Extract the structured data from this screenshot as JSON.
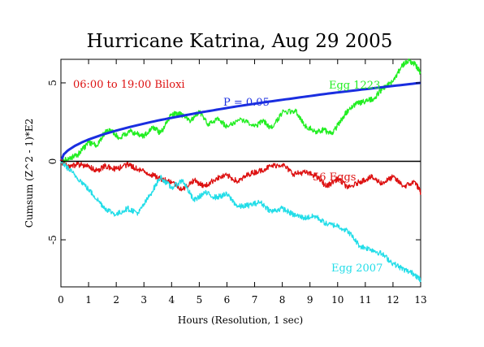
{
  "chart_data": {
    "type": "line",
    "title": "Hurricane Katrina, Aug 29 2005",
    "xlabel": "Hours (Resolution, 1 sec)",
    "ylabel": "Cumsum (Z^2 - 1)*E2",
    "xlim": [
      0,
      13
    ],
    "ylim": [
      -8,
      6.5
    ],
    "x_ticks": [
      0,
      1,
      2,
      3,
      4,
      5,
      6,
      7,
      8,
      9,
      10,
      11,
      12,
      13
    ],
    "y_ticks": [
      {
        "value": 5,
        "label": "5"
      },
      {
        "value": 0,
        "label": "0"
      },
      {
        "value": -5,
        "label": "-5"
      }
    ],
    "annotations": {
      "period": "06:00 to 19:00 Biloxi",
      "significance": "P = 0.05"
    },
    "grid": false,
    "series": [
      {
        "name": "Egg 1223",
        "color": "#22ee22",
        "x": [
          0,
          0.3,
          0.6,
          1.0,
          1.3,
          1.6,
          1.8,
          2.1,
          2.5,
          3.0,
          3.3,
          3.6,
          4.0,
          4.3,
          4.7,
          5.0,
          5.3,
          5.7,
          6.0,
          6.5,
          7.0,
          7.3,
          7.6,
          8.0,
          8.5,
          8.8,
          9.2,
          9.5,
          9.8,
          10.1,
          10.4,
          10.7,
          11.0,
          11.3,
          11.6,
          12.0,
          12.3,
          12.5,
          12.8,
          13.0
        ],
        "y": [
          0,
          0.2,
          0.4,
          1.2,
          1.0,
          1.9,
          2.0,
          1.5,
          1.9,
          1.6,
          2.2,
          1.8,
          3.0,
          3.0,
          2.6,
          3.2,
          2.4,
          2.7,
          2.2,
          2.7,
          2.2,
          2.6,
          2.1,
          3.1,
          3.2,
          2.3,
          1.9,
          2.0,
          1.7,
          2.6,
          3.3,
          3.7,
          3.8,
          4.0,
          4.6,
          5.1,
          6.0,
          6.4,
          6.2,
          5.6
        ]
      },
      {
        "name": "P = 0.05",
        "color": "#1a2ee0",
        "x": [
          0,
          0.1,
          0.25,
          0.5,
          0.75,
          1.0,
          1.5,
          2.0,
          2.5,
          3.0,
          3.5,
          4.0,
          4.5,
          5.0,
          5.5,
          6.0,
          6.5,
          7.0,
          7.5,
          8.0,
          8.5,
          9.0,
          9.5,
          10.0,
          10.5,
          11.0,
          11.5,
          12.0,
          12.5,
          13.0
        ],
        "y": [
          0,
          0.44,
          0.69,
          0.98,
          1.2,
          1.39,
          1.7,
          1.96,
          2.19,
          2.4,
          2.6,
          2.77,
          2.94,
          3.1,
          3.25,
          3.4,
          3.54,
          3.67,
          3.8,
          3.92,
          4.04,
          4.16,
          4.28,
          4.39,
          4.49,
          4.6,
          4.7,
          4.8,
          4.9,
          5.0
        ]
      },
      {
        "name": "56 Eggs",
        "color": "#dd1111",
        "x": [
          0,
          0.3,
          0.6,
          1.0,
          1.3,
          1.6,
          2.0,
          2.4,
          2.8,
          3.2,
          3.6,
          4.0,
          4.4,
          4.8,
          5.2,
          5.6,
          6.0,
          6.4,
          6.8,
          7.2,
          7.6,
          8.0,
          8.4,
          8.8,
          9.2,
          9.6,
          10.0,
          10.4,
          10.8,
          11.2,
          11.6,
          12.0,
          12.4,
          12.8,
          13.0
        ],
        "y": [
          0,
          -0.4,
          -0.2,
          -0.3,
          -0.6,
          -0.3,
          -0.5,
          -0.2,
          -0.5,
          -0.8,
          -1.1,
          -1.3,
          -1.8,
          -1.2,
          -1.6,
          -1.1,
          -0.9,
          -1.3,
          -0.8,
          -0.6,
          -0.3,
          -0.2,
          -0.8,
          -0.7,
          -0.9,
          -1.6,
          -1.1,
          -1.7,
          -1.3,
          -1.0,
          -1.4,
          -1.0,
          -1.6,
          -1.3,
          -2.0
        ]
      },
      {
        "name": "Egg 2007",
        "color": "#22dde8",
        "x": [
          0,
          0.4,
          0.8,
          1.2,
          1.6,
          2.0,
          2.4,
          2.8,
          3.2,
          3.6,
          4.0,
          4.4,
          4.8,
          5.2,
          5.6,
          6.0,
          6.4,
          6.8,
          7.2,
          7.6,
          8.0,
          8.4,
          8.8,
          9.2,
          9.6,
          10.0,
          10.4,
          10.8,
          11.2,
          11.6,
          12.0,
          12.4,
          12.8,
          13.0
        ],
        "y": [
          0,
          -0.7,
          -1.4,
          -2.2,
          -3.0,
          -3.4,
          -3.0,
          -3.3,
          -2.2,
          -1.0,
          -1.7,
          -1.2,
          -2.5,
          -2.0,
          -2.3,
          -2.1,
          -2.9,
          -2.8,
          -2.6,
          -3.2,
          -3.0,
          -3.4,
          -3.6,
          -3.5,
          -4.0,
          -4.1,
          -4.5,
          -5.4,
          -5.6,
          -5.9,
          -6.5,
          -6.9,
          -7.2,
          -7.6
        ]
      }
    ]
  }
}
